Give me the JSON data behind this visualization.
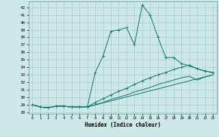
{
  "xlabel": "Humidex (Indice chaleur)",
  "bg_color": "#cce8e8",
  "grid_color": "#aacccc",
  "line_color": "#1a7a6e",
  "xlim": [
    -0.5,
    23.5
  ],
  "ylim": [
    27.8,
    42.8
  ],
  "xticks": [
    0,
    1,
    2,
    3,
    4,
    5,
    6,
    7,
    8,
    9,
    10,
    11,
    12,
    13,
    14,
    15,
    16,
    17,
    18,
    19,
    20,
    21,
    22,
    23
  ],
  "yticks": [
    28,
    29,
    30,
    31,
    32,
    33,
    34,
    35,
    36,
    37,
    38,
    39,
    40,
    41,
    42
  ],
  "curve1_x": [
    0,
    1,
    2,
    3,
    4,
    5,
    6,
    7,
    8,
    9,
    10,
    11,
    12,
    13,
    14,
    15,
    16,
    17,
    18,
    19,
    20,
    21,
    22,
    23
  ],
  "curve1_y": [
    29.0,
    28.7,
    28.6,
    28.8,
    28.8,
    28.7,
    28.7,
    28.7,
    33.3,
    35.5,
    38.8,
    39.0,
    39.3,
    37.0,
    42.3,
    41.0,
    38.0,
    35.3,
    35.3,
    34.5,
    34.2,
    33.8,
    33.5,
    33.3
  ],
  "curve2_x": [
    0,
    1,
    2,
    3,
    4,
    5,
    6,
    7,
    8,
    9,
    10,
    11,
    12,
    13,
    14,
    15,
    16,
    17,
    18,
    19,
    20,
    21,
    22,
    23
  ],
  "curve2_y": [
    29.0,
    28.7,
    28.6,
    28.8,
    28.8,
    28.7,
    28.7,
    28.7,
    29.3,
    29.8,
    30.3,
    30.8,
    31.2,
    31.7,
    32.2,
    32.6,
    33.0,
    33.3,
    33.7,
    34.0,
    34.3,
    33.8,
    33.5,
    33.3
  ],
  "curve3_x": [
    0,
    1,
    2,
    3,
    4,
    5,
    6,
    7,
    8,
    9,
    10,
    11,
    12,
    13,
    14,
    15,
    16,
    17,
    18,
    19,
    20,
    21,
    22,
    23
  ],
  "curve3_y": [
    29.0,
    28.7,
    28.6,
    28.8,
    28.8,
    28.7,
    28.7,
    28.7,
    29.0,
    29.3,
    29.7,
    30.0,
    30.3,
    30.7,
    31.0,
    31.3,
    31.7,
    32.0,
    32.3,
    32.6,
    32.8,
    32.3,
    32.7,
    33.0
  ],
  "curve4_x": [
    0,
    1,
    2,
    3,
    4,
    5,
    6,
    7,
    23
  ],
  "curve4_y": [
    29.0,
    28.7,
    28.6,
    28.8,
    28.8,
    28.7,
    28.7,
    28.7,
    33.0
  ]
}
